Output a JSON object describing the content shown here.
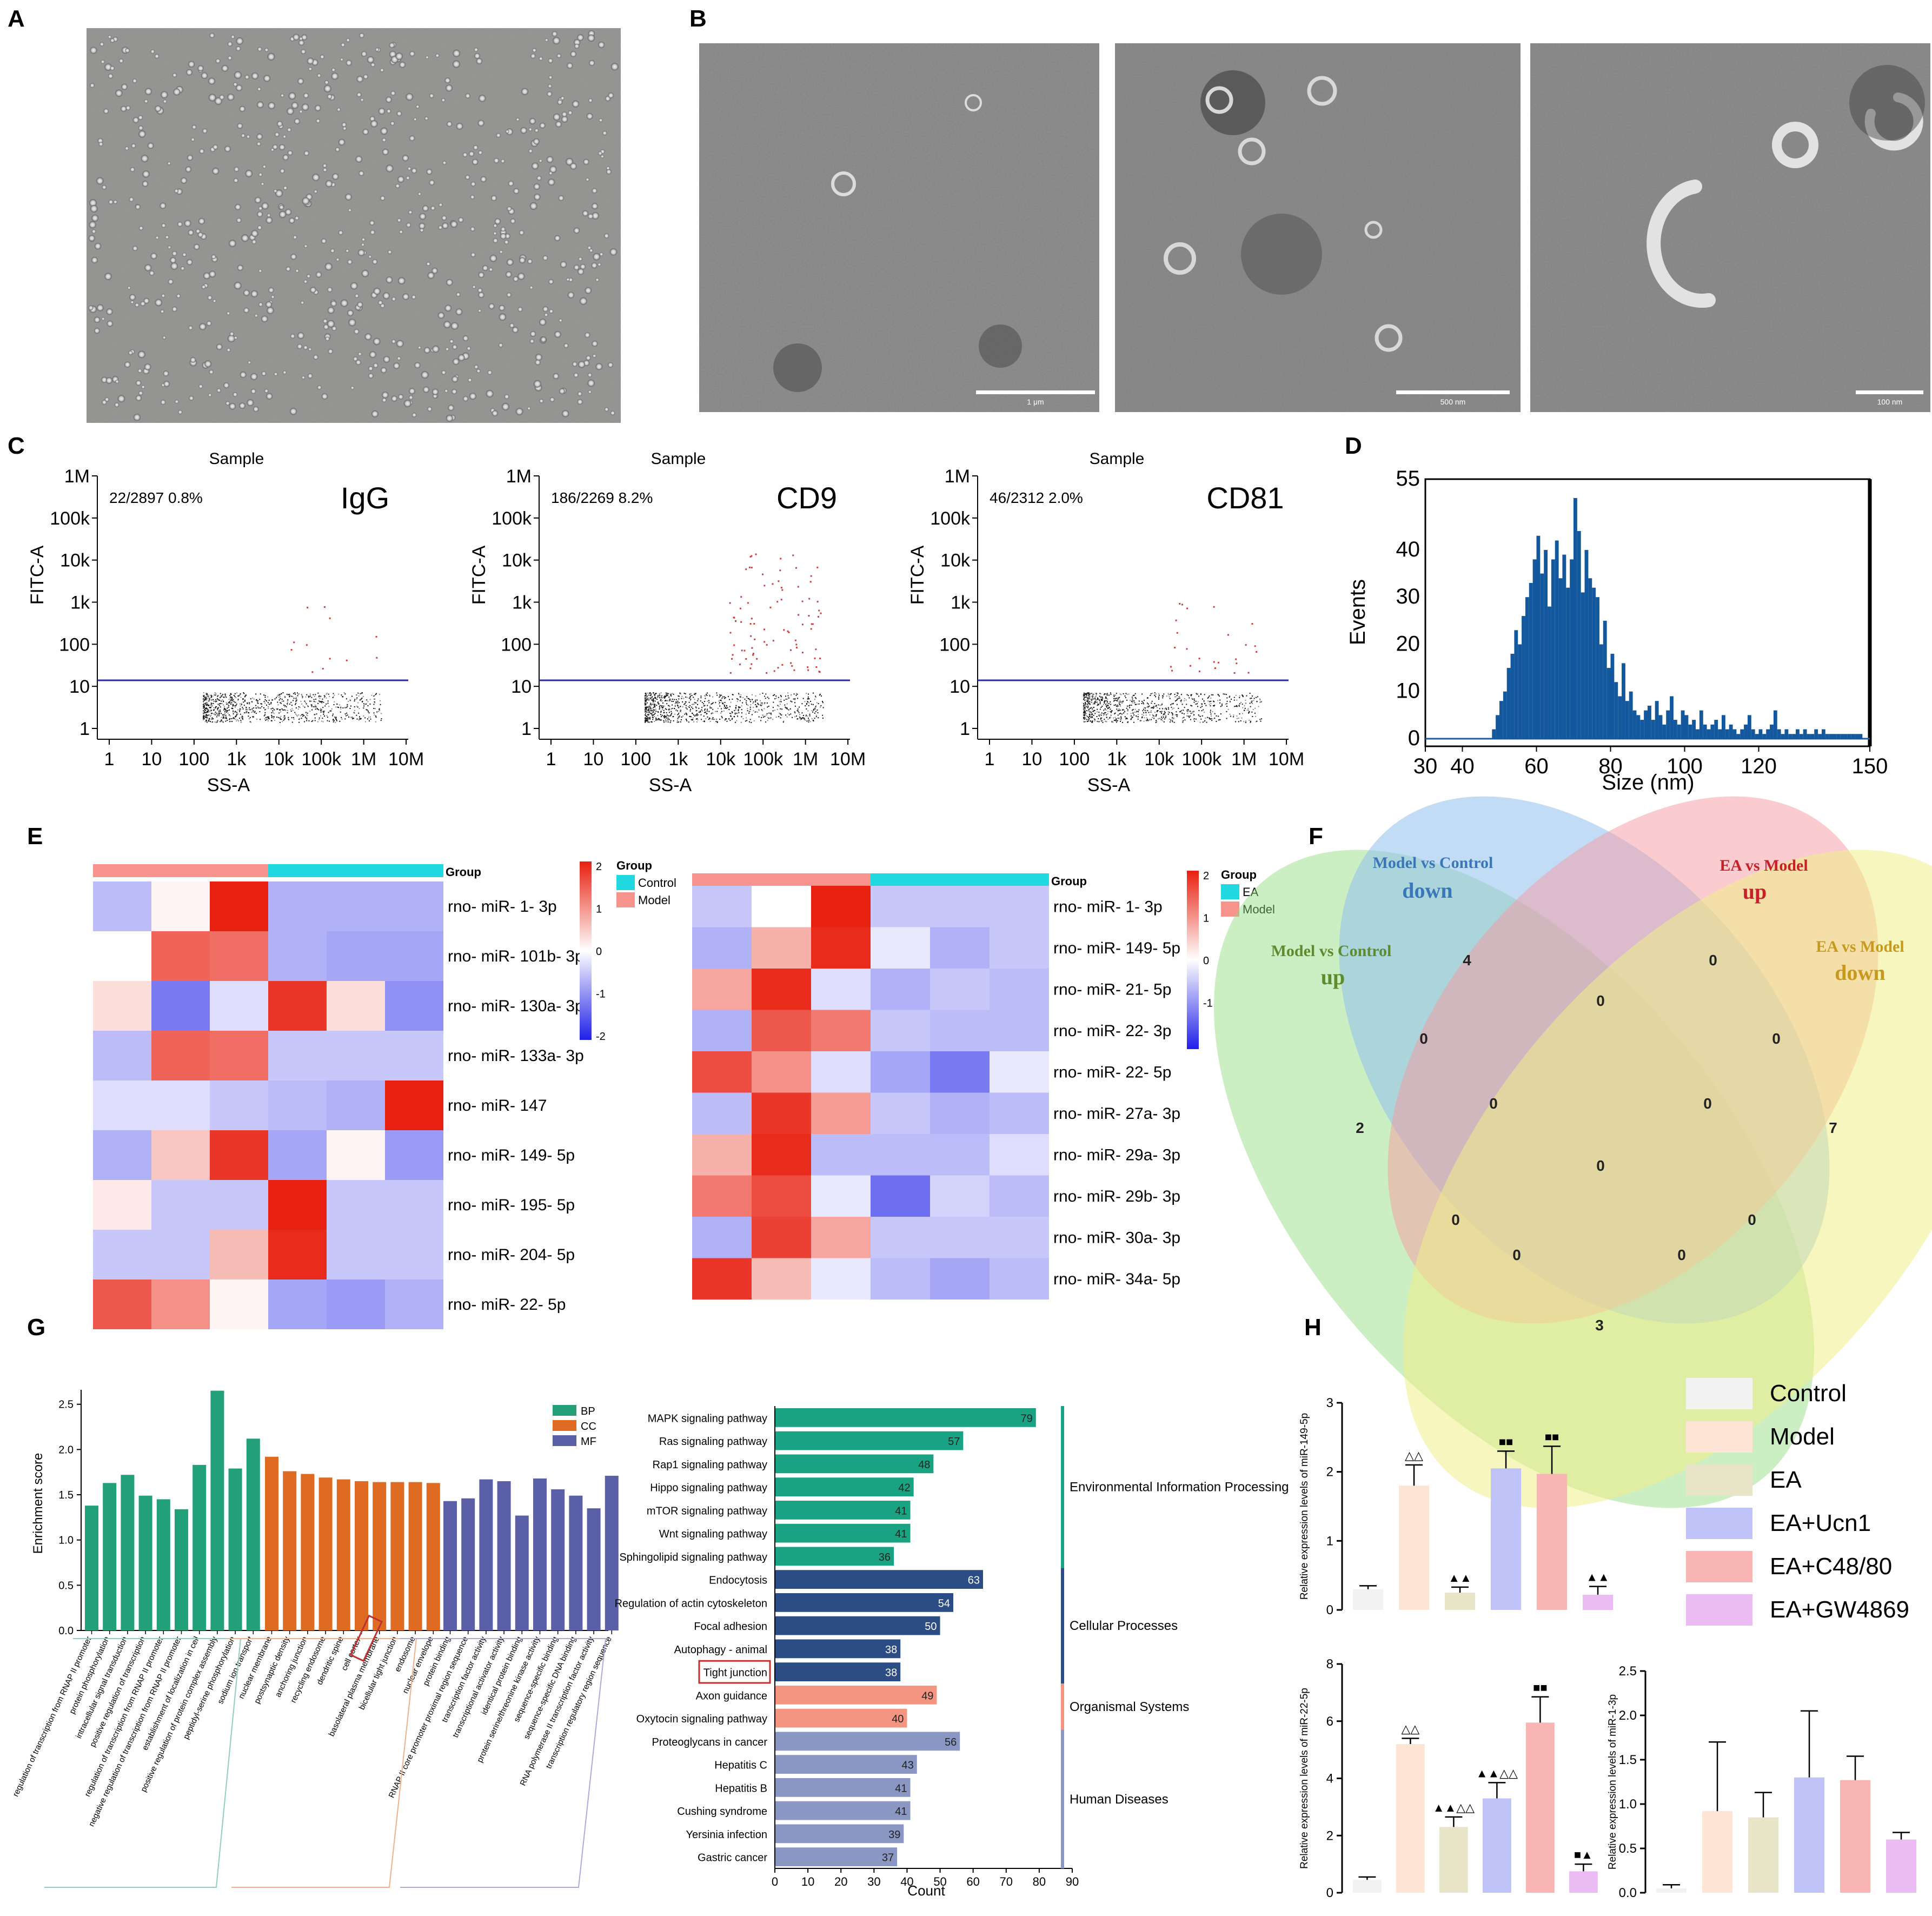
{
  "panels": {
    "A": "A",
    "B": "B",
    "C": "C",
    "D": "D",
    "E": "E",
    "F": "F",
    "G": "G",
    "H": "H"
  },
  "panel_b": {
    "scale_labels": [
      "1 μm",
      "500 nm",
      "100 nm"
    ]
  },
  "panel_c": {
    "plots": [
      {
        "title": "Sample",
        "stat": "22/2897  0.8%",
        "marker": "IgG",
        "ylabel": "FITC-A",
        "xlabel": "SS-A"
      },
      {
        "title": "Sample",
        "stat": "186/2269  8.2%",
        "marker": "CD9",
        "ylabel": "FITC-A",
        "xlabel": "SS-A"
      },
      {
        "title": "Sample",
        "stat": "46/2312  2.0%",
        "marker": "CD81",
        "ylabel": "FITC-A",
        "xlabel": "SS-A"
      }
    ],
    "x_ticks": [
      "1",
      "10",
      "100",
      "1k",
      "10k",
      "100k",
      "1M",
      "10M"
    ],
    "y_ticks": [
      "1",
      "10",
      "100",
      "1k",
      "10k",
      "100k",
      "1M"
    ]
  },
  "chart_data": [
    {
      "type": "bar",
      "panel": "D",
      "xlabel": "Size (nm)",
      "ylabel": "Events",
      "xlim": [
        30,
        150
      ],
      "ylim": [
        0,
        55
      ],
      "x_ticks": [
        30,
        40,
        60,
        80,
        100,
        120,
        150
      ],
      "y_ticks": [
        0,
        10,
        20,
        30,
        40,
        55
      ],
      "x": [
        48,
        49,
        50,
        51,
        52,
        53,
        54,
        55,
        56,
        57,
        58,
        59,
        60,
        61,
        62,
        63,
        64,
        65,
        66,
        67,
        68,
        69,
        70,
        71,
        72,
        73,
        74,
        75,
        76,
        77,
        78,
        79,
        80,
        81,
        82,
        83,
        84,
        85,
        86,
        87,
        88,
        89,
        90,
        91,
        92,
        93,
        94,
        95,
        96,
        97,
        98,
        99,
        100,
        101,
        102,
        103,
        104,
        105,
        106,
        107,
        108,
        109,
        110,
        111,
        112,
        113,
        114,
        115,
        116,
        117,
        118,
        119,
        120,
        121,
        122,
        123,
        124,
        125,
        126,
        127,
        128,
        129,
        130,
        131,
        132,
        133,
        134,
        135,
        136,
        137,
        138,
        139,
        140,
        141,
        142,
        143,
        144,
        145,
        146,
        147
      ],
      "values": [
        2,
        5,
        8,
        10,
        15,
        18,
        23,
        20,
        26,
        30,
        33,
        38,
        43,
        35,
        40,
        28,
        38,
        42,
        34,
        39,
        32,
        38,
        51,
        44,
        31,
        40,
        34,
        32,
        30,
        20,
        25,
        15,
        18,
        12,
        9,
        16,
        8,
        10,
        6,
        5,
        4,
        6,
        7,
        4,
        8,
        5,
        3,
        6,
        9,
        4,
        3,
        6,
        5,
        3,
        4,
        2,
        6,
        3,
        2,
        3,
        4,
        2,
        5,
        2,
        3,
        2,
        1,
        2,
        3,
        5,
        2,
        1,
        2,
        1,
        2,
        3,
        6,
        2,
        1,
        2,
        1,
        1,
        2,
        1,
        2,
        1,
        1,
        2,
        1,
        2,
        1,
        1,
        1,
        1,
        1,
        1,
        1,
        1,
        1,
        1
      ]
    },
    {
      "type": "heatmap",
      "panel": "E-left",
      "groups_title": "Group",
      "legend_items": [
        "Control",
        "Model"
      ],
      "top_bar_groups": [
        "Model",
        "Control"
      ],
      "colorbar_ticks": [
        "2",
        "1",
        "0",
        "-1",
        "-2"
      ],
      "rows": [
        "rno- miR- 1- 3p",
        "rno- miR- 101b- 3p",
        "rno- miR- 130a- 3p",
        "rno- miR- 133a- 3p",
        "rno- miR- 147",
        "rno- miR- 149- 5p",
        "rno- miR- 195- 5p",
        "rno- miR- 204- 5p",
        "rno- miR- 22- 5p"
      ],
      "values": [
        [
          -0.6,
          0.1,
          2.0,
          -0.7,
          -0.7,
          -0.7
        ],
        [
          0.0,
          1.4,
          1.3,
          -0.7,
          -0.8,
          -0.8
        ],
        [
          0.3,
          -1.2,
          -0.3,
          1.8,
          0.3,
          -1.0
        ],
        [
          -0.6,
          1.4,
          1.3,
          -0.5,
          -0.5,
          -0.5
        ],
        [
          -0.3,
          -0.3,
          -0.5,
          -0.6,
          -0.7,
          2.0
        ],
        [
          -0.7,
          0.5,
          1.8,
          -0.8,
          0.1,
          -0.9
        ],
        [
          0.2,
          -0.5,
          -0.5,
          2.0,
          -0.5,
          -0.5
        ],
        [
          -0.5,
          -0.5,
          0.6,
          1.9,
          -0.5,
          -0.5
        ],
        [
          1.5,
          1.0,
          0.1,
          -0.8,
          -0.9,
          -0.7
        ]
      ]
    },
    {
      "type": "heatmap",
      "panel": "E-right",
      "groups_title": "Group",
      "legend_items": [
        "EA",
        "Model"
      ],
      "top_bar_groups": [
        "Model",
        "EA"
      ],
      "colorbar_ticks": [
        "2",
        "1",
        "0",
        "-1"
      ],
      "rows": [
        "rno- miR- 1- 3p",
        "rno- miR- 149- 5p",
        "rno- miR- 21- 5p",
        "rno- miR- 22- 3p",
        "rno- miR- 22- 5p",
        "rno- miR- 27a- 3p",
        "rno- miR- 29a- 3p",
        "rno- miR- 29b- 3p",
        "rno- miR- 30a- 3p",
        "rno- miR- 34a- 5p"
      ],
      "values": [
        [
          -0.5,
          0.0,
          2.0,
          -0.5,
          -0.5,
          -0.5
        ],
        [
          -0.7,
          0.7,
          1.9,
          -0.2,
          -0.7,
          -0.5
        ],
        [
          0.8,
          1.9,
          -0.3,
          -0.7,
          -0.5,
          -0.6
        ],
        [
          -0.7,
          1.5,
          1.2,
          -0.5,
          -0.6,
          -0.6
        ],
        [
          1.6,
          1.0,
          -0.3,
          -0.8,
          -1.2,
          -0.2
        ],
        [
          -0.6,
          1.8,
          0.9,
          -0.5,
          -0.7,
          -0.6
        ],
        [
          0.7,
          1.9,
          -0.6,
          -0.6,
          -0.6,
          -0.3
        ],
        [
          1.2,
          1.6,
          -0.2,
          -1.3,
          -0.4,
          -0.6
        ],
        [
          -0.7,
          1.7,
          0.8,
          -0.5,
          -0.5,
          -0.5
        ],
        [
          1.8,
          0.6,
          -0.2,
          -0.6,
          -0.8,
          -0.6
        ]
      ]
    },
    {
      "type": "bar",
      "panel": "G-GO",
      "ylabel": "Enrichment score",
      "ylim": [
        0,
        2.6
      ],
      "y_ticks": [
        "0.0",
        "0.5",
        "1.0",
        "1.5",
        "2.0",
        "2.5"
      ],
      "legend": [
        "BP",
        "CC",
        "MF"
      ],
      "series": [
        {
          "name": "BP",
          "categories": [
            "regulation of transcription from RNAP II promoter",
            "protein phosphorylation",
            "intracellular signal transduction",
            "positive regulation of transcription",
            "regulation of transcription from RNAP II promoter",
            "negative regulation of transcription from RNAP II promoter",
            "establishment of localization in cell",
            "positive regulation of protein complex assembly",
            "peptidyl-serine phosphorylation",
            "sodium ion transport"
          ],
          "values": [
            1.38,
            1.63,
            1.72,
            1.49,
            1.45,
            1.34,
            1.83,
            2.65,
            1.79,
            2.12
          ]
        },
        {
          "name": "CC",
          "categories": [
            "nuclear membrane",
            "postsynaptic density",
            "anchoring junction",
            "recycling endosome",
            "dendritic spine",
            "cell cortex",
            "basolateral plasma membrane",
            "bicellular tight junction",
            "endosome",
            "nuclear envelope"
          ],
          "values": [
            1.92,
            1.76,
            1.73,
            1.69,
            1.67,
            1.65,
            1.64,
            1.64,
            1.64,
            1.63
          ]
        },
        {
          "name": "MF",
          "categories": [
            "protein binding",
            "RNAP II core promoter proximal region sequence",
            "transcription factor activity",
            "transcriptional activator activity",
            "identical protein binding",
            "protein serine/threonine kinase activity",
            "sequence-specific binding",
            "sequence-specific DNA binding",
            "RNA polymerase II transcription factor activity",
            "transcription regulatory region sequence"
          ],
          "values": [
            1.43,
            1.46,
            1.67,
            1.65,
            1.27,
            1.68,
            1.56,
            1.49,
            1.35,
            1.71
          ]
        }
      ]
    },
    {
      "type": "bar",
      "panel": "G-KEGG",
      "orientation": "horizontal",
      "xlabel": "Count",
      "xlim": [
        0,
        90
      ],
      "x_ticks": [
        0,
        10,
        20,
        30,
        40,
        50,
        60,
        70,
        80,
        90
      ],
      "categories": [
        "MAPK signaling pathway",
        "Ras signaling pathway",
        "Rap1 signaling pathway",
        "Hippo signaling pathway",
        "mTOR signaling pathway",
        "Wnt signaling pathway",
        "Sphingolipid signaling pathway",
        "Endocytosis",
        "Regulation of actin cytoskeleton",
        "Focal adhesion",
        "Autophagy - animal",
        "Tight junction",
        "Axon guidance",
        "Oxytocin signaling pathway",
        "Proteoglycans in cancer",
        "Hepatitis C",
        "Hepatitis B",
        "Cushing syndrome",
        "Yersinia infection",
        "Gastric cancer"
      ],
      "values": [
        79,
        57,
        48,
        42,
        41,
        41,
        36,
        63,
        54,
        50,
        38,
        38,
        49,
        40,
        56,
        43,
        41,
        41,
        39,
        37
      ],
      "group_index": [
        0,
        0,
        0,
        0,
        0,
        0,
        0,
        1,
        1,
        1,
        1,
        1,
        2,
        2,
        3,
        3,
        3,
        3,
        3,
        3
      ],
      "groups": [
        "Environmental Information Processing",
        "Cellular Processes",
        "Organismal Systems",
        "Human Diseases"
      ],
      "colors": [
        "#1aa383",
        "#2c4c86",
        "#f39581",
        "#8a97c3"
      ],
      "highlight": "Tight junction"
    },
    {
      "type": "bar",
      "panel": "H-miR-149-5p",
      "ylabel": "Relative expression levels of miR-149-5p",
      "ylim": [
        0,
        3
      ],
      "y_ticks": [
        0,
        1,
        2,
        3
      ],
      "categories": [
        "Control",
        "Model",
        "EA",
        "EA+Ucn1",
        "EA+C48/80",
        "EA+GW4869"
      ],
      "values": [
        0.3,
        1.8,
        0.25,
        2.05,
        1.97,
        0.22
      ],
      "errors": [
        0.05,
        0.3,
        0.08,
        0.25,
        0.4,
        0.12
      ],
      "marks": [
        "",
        "△△",
        "▲▲",
        "■■",
        "■■",
        "▲▲"
      ]
    },
    {
      "type": "bar",
      "panel": "H-miR-22-5p",
      "ylabel": "Relative expression levels of miR-22-5p",
      "ylim": [
        0,
        8
      ],
      "y_ticks": [
        0,
        2,
        4,
        6,
        8
      ],
      "categories": [
        "Control",
        "Model",
        "EA",
        "EA+Ucn1",
        "EA+C48/80",
        "EA+GW4869"
      ],
      "values": [
        0.45,
        5.2,
        2.3,
        3.3,
        5.95,
        0.75
      ],
      "errors": [
        0.1,
        0.2,
        0.35,
        0.55,
        0.9,
        0.25
      ],
      "marks": [
        "",
        "△△",
        "▲▲△△",
        "▲▲△△",
        "■■",
        "■▲"
      ]
    },
    {
      "type": "bar",
      "panel": "H-miR-1-3p",
      "ylabel": "Relative expression levels of miR-1-3p",
      "ylim": [
        0,
        2.5
      ],
      "y_ticks": [
        "0.0",
        "0.5",
        "1.0",
        "1.5",
        "2.0",
        "2.5"
      ],
      "categories": [
        "Control",
        "Model",
        "EA",
        "EA+Ucn1",
        "EA+C48/80",
        "EA+GW4869"
      ],
      "values": [
        0.05,
        0.92,
        0.85,
        1.3,
        1.27,
        0.6
      ],
      "errors": [
        0.04,
        0.78,
        0.28,
        0.75,
        0.27,
        0.08
      ],
      "marks": [
        "",
        "",
        "",
        "",
        "",
        ""
      ]
    }
  ],
  "panel_f": {
    "sets": [
      {
        "label1": "Model vs Control",
        "label2": "down",
        "color": "#3a77b8"
      },
      {
        "label1": "EA vs Model",
        "label2": "up",
        "color": "#c8202a"
      },
      {
        "label1": "Model vs Control",
        "label2": "up",
        "color": "#5c8c2e"
      },
      {
        "label1": "EA vs Model",
        "label2": "down",
        "color": "#c79a1e"
      }
    ],
    "counts": [
      "4",
      "0",
      "0",
      "0",
      "0",
      "0",
      "0",
      "2",
      "7",
      "0",
      "0",
      "0",
      "0",
      "0",
      "3"
    ]
  },
  "panel_h_legend": [
    "Control",
    "Model",
    "EA",
    "EA+Ucn1",
    "EA+C48/80",
    "EA+GW4869"
  ],
  "colors": {
    "group_bars": [
      "#f2f2f2",
      "#fde4d4",
      "#e8e4c8",
      "#bfc3f7",
      "#f9b4b4",
      "#ebbcf3"
    ],
    "heat_high": "#e82010",
    "heat_low": "#2020e8"
  }
}
